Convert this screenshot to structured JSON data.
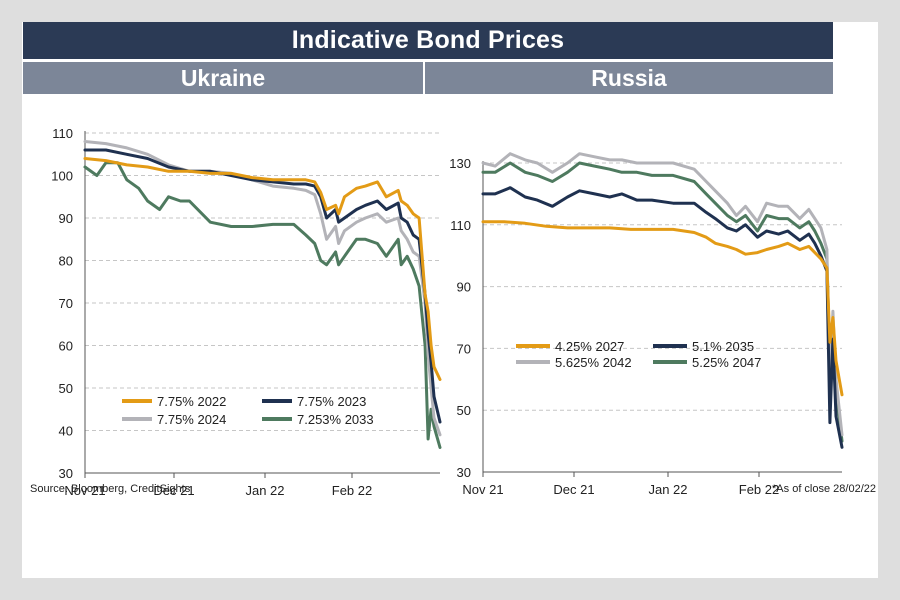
{
  "header": {
    "title": "Indicative Bond Prices",
    "panels": [
      "Ukraine",
      "Russia"
    ]
  },
  "footer": {
    "source": "Source: Bloomberg, CreditSights",
    "as_of": "*As of close 28/02/22"
  },
  "colors": {
    "orange": "#e39b16",
    "navy": "#1f3150",
    "silver": "#b3b3b8",
    "green": "#4e7a5f",
    "grid": "#c6c6c6",
    "axis": "#555555"
  },
  "chart_data": [
    {
      "type": "line",
      "title": "Ukraine",
      "x_axis_type": "date",
      "xlim": [
        "2021-11-01",
        "2022-02-28"
      ],
      "x_ticks": [
        "Nov 21",
        "Dec 21",
        "Jan 22",
        "Feb 22"
      ],
      "ylim": [
        30,
        110
      ],
      "y_ticks": [
        30,
        40,
        50,
        60,
        70,
        80,
        90,
        100,
        110
      ],
      "grid": "horizontal",
      "legend_placement": "bottom-center",
      "series": [
        {
          "name": "7.75% 2022",
          "color": "orange",
          "x": [
            "2021-11-01",
            "2021-11-08",
            "2021-11-15",
            "2021-11-22",
            "2021-11-29",
            "2021-12-06",
            "2021-12-13",
            "2021-12-20",
            "2021-12-27",
            "2022-01-03",
            "2022-01-10",
            "2022-01-14",
            "2022-01-17",
            "2022-01-19",
            "2022-01-21",
            "2022-01-24",
            "2022-01-25",
            "2022-01-27",
            "2022-01-31",
            "2022-02-03",
            "2022-02-07",
            "2022-02-10",
            "2022-02-14",
            "2022-02-15",
            "2022-02-17",
            "2022-02-19",
            "2022-02-21",
            "2022-02-23",
            "2022-02-24",
            "2022-02-25",
            "2022-02-26",
            "2022-02-28"
          ],
          "values": [
            104,
            103.5,
            102.5,
            102,
            101,
            101,
            100.5,
            100.5,
            99.5,
            99,
            99,
            99,
            98.5,
            96,
            92,
            93,
            91,
            95,
            97,
            97.5,
            98.5,
            95,
            96.5,
            94,
            93,
            91,
            90,
            72,
            68,
            60,
            55,
            52
          ]
        },
        {
          "name": "7.75% 2023",
          "color": "navy",
          "x": [
            "2021-11-01",
            "2021-11-08",
            "2021-11-15",
            "2021-11-22",
            "2021-11-29",
            "2021-12-06",
            "2021-12-13",
            "2021-12-20",
            "2021-12-27",
            "2022-01-03",
            "2022-01-10",
            "2022-01-14",
            "2022-01-17",
            "2022-01-19",
            "2022-01-21",
            "2022-01-24",
            "2022-01-25",
            "2022-01-27",
            "2022-01-31",
            "2022-02-03",
            "2022-02-07",
            "2022-02-10",
            "2022-02-14",
            "2022-02-15",
            "2022-02-17",
            "2022-02-19",
            "2022-02-21",
            "2022-02-23",
            "2022-02-24",
            "2022-02-25",
            "2022-02-26",
            "2022-02-28"
          ],
          "values": [
            106,
            106,
            105,
            104,
            102,
            101,
            101,
            100,
            99,
            98.5,
            98,
            98,
            97.5,
            95,
            90,
            92,
            89,
            90,
            92,
            93,
            94,
            92,
            93.5,
            90,
            89,
            86,
            85,
            72,
            63,
            56,
            48,
            42
          ]
        },
        {
          "name": "7.75% 2024",
          "color": "silver",
          "x": [
            "2021-11-01",
            "2021-11-08",
            "2021-11-15",
            "2021-11-22",
            "2021-11-29",
            "2021-12-06",
            "2021-12-13",
            "2021-12-20",
            "2021-12-27",
            "2022-01-03",
            "2022-01-10",
            "2022-01-14",
            "2022-01-17",
            "2022-01-19",
            "2022-01-21",
            "2022-01-24",
            "2022-01-25",
            "2022-01-27",
            "2022-01-31",
            "2022-02-03",
            "2022-02-07",
            "2022-02-10",
            "2022-02-14",
            "2022-02-15",
            "2022-02-17",
            "2022-02-19",
            "2022-02-21",
            "2022-02-23",
            "2022-02-24",
            "2022-02-25",
            "2022-02-26",
            "2022-02-28"
          ],
          "values": [
            108,
            107.5,
            106.5,
            105,
            102.5,
            101,
            101,
            100.5,
            99,
            97.5,
            97,
            96.5,
            95.5,
            91,
            85,
            88,
            84,
            87,
            89,
            90,
            91,
            89,
            90,
            87,
            85,
            82,
            81,
            70,
            58,
            50,
            43,
            39
          ]
        },
        {
          "name": "7.253% 2033",
          "color": "green",
          "x": [
            "2021-11-01",
            "2021-11-05",
            "2021-11-08",
            "2021-11-12",
            "2021-11-15",
            "2021-11-19",
            "2021-11-22",
            "2021-11-26",
            "2021-11-29",
            "2021-12-03",
            "2021-12-06",
            "2021-12-13",
            "2021-12-20",
            "2021-12-27",
            "2022-01-03",
            "2022-01-10",
            "2022-01-14",
            "2022-01-17",
            "2022-01-19",
            "2022-01-21",
            "2022-01-24",
            "2022-01-25",
            "2022-01-27",
            "2022-01-31",
            "2022-02-03",
            "2022-02-07",
            "2022-02-10",
            "2022-02-14",
            "2022-02-15",
            "2022-02-17",
            "2022-02-19",
            "2022-02-21",
            "2022-02-23",
            "2022-02-24",
            "2022-02-25",
            "2022-02-26",
            "2022-02-28"
          ],
          "values": [
            102,
            100,
            103,
            103,
            99,
            97,
            94,
            92,
            95,
            94,
            94,
            89,
            88,
            88,
            88.5,
            88.5,
            86,
            84,
            80,
            79,
            82,
            79,
            81,
            85,
            85,
            84,
            81,
            85,
            79,
            81,
            78,
            74,
            60,
            38,
            45,
            41,
            36
          ]
        }
      ]
    },
    {
      "type": "line",
      "title": "Russia",
      "x_axis_type": "date",
      "xlim": [
        "2021-11-01",
        "2022-02-28"
      ],
      "x_ticks": [
        "Nov 21",
        "Dec 21",
        "Jan 22",
        "Feb 22"
      ],
      "ylim": [
        30,
        130
      ],
      "y_ticks": [
        30,
        50,
        70,
        90,
        110,
        130
      ],
      "grid": "horizontal",
      "legend_placement": "lower-left",
      "series": [
        {
          "name": "4.25% 2027",
          "color": "orange",
          "x": [
            "2021-11-01",
            "2021-11-08",
            "2021-11-15",
            "2021-11-22",
            "2021-11-29",
            "2021-12-06",
            "2021-12-13",
            "2021-12-20",
            "2021-12-27",
            "2022-01-03",
            "2022-01-10",
            "2022-01-14",
            "2022-01-17",
            "2022-01-21",
            "2022-01-24",
            "2022-01-27",
            "2022-01-31",
            "2022-02-03",
            "2022-02-07",
            "2022-02-10",
            "2022-02-14",
            "2022-02-17",
            "2022-02-19",
            "2022-02-21",
            "2022-02-23",
            "2022-02-24",
            "2022-02-25",
            "2022-02-26",
            "2022-02-28"
          ],
          "values": [
            111,
            111,
            110.5,
            109.5,
            109,
            109,
            109,
            108.5,
            108.5,
            108.5,
            107.5,
            106,
            104,
            103,
            102,
            100.5,
            101,
            102,
            103,
            104,
            102,
            103,
            101,
            99,
            96,
            72,
            80,
            66,
            55
          ]
        },
        {
          "name": "5.1% 2035",
          "color": "navy",
          "x": [
            "2021-11-01",
            "2021-11-05",
            "2021-11-10",
            "2021-11-15",
            "2021-11-19",
            "2021-11-24",
            "2021-11-29",
            "2021-12-03",
            "2021-12-08",
            "2021-12-13",
            "2021-12-17",
            "2021-12-22",
            "2021-12-27",
            "2022-01-03",
            "2022-01-10",
            "2022-01-14",
            "2022-01-17",
            "2022-01-21",
            "2022-01-24",
            "2022-01-27",
            "2022-01-31",
            "2022-02-03",
            "2022-02-07",
            "2022-02-10",
            "2022-02-14",
            "2022-02-17",
            "2022-02-19",
            "2022-02-21",
            "2022-02-23",
            "2022-02-24",
            "2022-02-25",
            "2022-02-26",
            "2022-02-28"
          ],
          "values": [
            120,
            120,
            122,
            119,
            118,
            116,
            119,
            121,
            120,
            119,
            120,
            118,
            118,
            117,
            117,
            114,
            112,
            109,
            108,
            110,
            106,
            108,
            107,
            108,
            105,
            107,
            104,
            100,
            95,
            46,
            73,
            48,
            38
          ]
        },
        {
          "name": "5.625% 2042",
          "color": "silver",
          "x": [
            "2021-11-01",
            "2021-11-05",
            "2021-11-10",
            "2021-11-15",
            "2021-11-19",
            "2021-11-24",
            "2021-11-29",
            "2021-12-03",
            "2021-12-08",
            "2021-12-13",
            "2021-12-17",
            "2021-12-22",
            "2021-12-27",
            "2022-01-03",
            "2022-01-10",
            "2022-01-14",
            "2022-01-17",
            "2022-01-21",
            "2022-01-24",
            "2022-01-27",
            "2022-01-31",
            "2022-02-03",
            "2022-02-07",
            "2022-02-10",
            "2022-02-14",
            "2022-02-17",
            "2022-02-19",
            "2022-02-21",
            "2022-02-23",
            "2022-02-24",
            "2022-02-25",
            "2022-02-26",
            "2022-02-28"
          ],
          "values": [
            130,
            129,
            133,
            131,
            130,
            127,
            130,
            133,
            132,
            131,
            131,
            130,
            130,
            130,
            128,
            124,
            121,
            117,
            113,
            116,
            111,
            117,
            116,
            116,
            112,
            115,
            112,
            109,
            102,
            53,
            82,
            60,
            42
          ]
        },
        {
          "name": "5.25% 2047",
          "color": "green",
          "x": [
            "2021-11-01",
            "2021-11-05",
            "2021-11-10",
            "2021-11-15",
            "2021-11-19",
            "2021-11-24",
            "2021-11-29",
            "2021-12-03",
            "2021-12-08",
            "2021-12-13",
            "2021-12-17",
            "2021-12-22",
            "2021-12-27",
            "2022-01-03",
            "2022-01-10",
            "2022-01-14",
            "2022-01-17",
            "2022-01-21",
            "2022-01-24",
            "2022-01-27",
            "2022-01-31",
            "2022-02-03",
            "2022-02-07",
            "2022-02-10",
            "2022-02-14",
            "2022-02-17",
            "2022-02-19",
            "2022-02-21",
            "2022-02-23",
            "2022-02-24",
            "2022-02-25",
            "2022-02-26",
            "2022-02-28"
          ],
          "values": [
            127,
            127,
            130,
            127,
            126,
            124,
            127,
            130,
            129,
            128,
            127,
            127,
            126,
            126,
            124,
            120,
            117,
            113,
            111,
            113,
            108,
            113,
            112,
            112,
            109,
            111,
            108,
            104,
            99,
            65,
            78,
            57,
            40
          ]
        }
      ]
    }
  ]
}
